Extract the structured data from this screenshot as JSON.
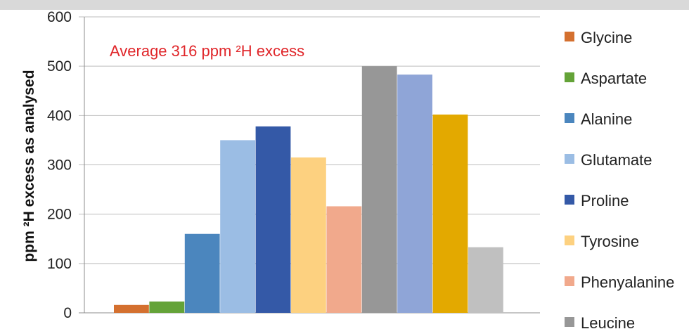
{
  "chart_data": {
    "type": "bar",
    "title": "",
    "xlabel": "",
    "ylabel": "ppm ²H excess as analysed",
    "ylim": [
      0,
      600
    ],
    "yticks": [
      "0",
      "100",
      "200",
      "300",
      "400",
      "500",
      "600"
    ],
    "grid": true,
    "legend_position": "right",
    "annotation": "Average 316 ppm ²H excess",
    "annotation_color": "#e0262a",
    "series": [
      {
        "name": "Glycine",
        "value": 16,
        "color": "#d4702f"
      },
      {
        "name": "Aspartate",
        "value": 23,
        "color": "#64a338"
      },
      {
        "name": "Alanine",
        "value": 160,
        "color": "#4b86be"
      },
      {
        "name": "Glutamate",
        "value": 350,
        "color": "#9bbde4"
      },
      {
        "name": "Proline",
        "value": 378,
        "color": "#3459a7"
      },
      {
        "name": "Tyrosine",
        "value": 315,
        "color": "#fdd180"
      },
      {
        "name": "Phenyalanine",
        "value": 216,
        "color": "#f1a98c"
      },
      {
        "name": "Leucine",
        "value": 500,
        "color": "#979797"
      },
      {
        "name": "",
        "value": 483,
        "color": "#8fa5d7"
      },
      {
        "name": "",
        "value": 402,
        "color": "#e3a900"
      },
      {
        "name": "",
        "value": 133,
        "color": "#c0c0c0"
      }
    ]
  }
}
